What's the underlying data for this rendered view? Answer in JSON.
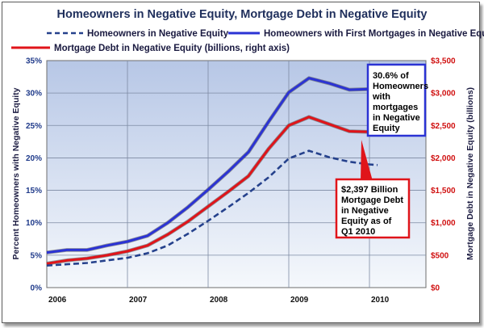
{
  "chart_data": {
    "type": "line",
    "title": "Homeowners in Negative Equity, Mortgage Debt in Negative Equity",
    "ylabel": "Percent Homeowners with Negative Equity",
    "y2label": "Mortgage Debt in Negative Equity (billions)",
    "ylim": [
      0,
      35
    ],
    "y2lim": [
      0,
      3500
    ],
    "xlim": [
      2006,
      2010.7
    ],
    "yticks": [
      "0%",
      "5%",
      "10%",
      "15%",
      "20%",
      "25%",
      "30%",
      "35%"
    ],
    "y2ticks": [
      "$0",
      "$500",
      "$1,000",
      "$1,500",
      "$2,000",
      "$2,500",
      "$3,000",
      "$3,500"
    ],
    "xticks": [
      "2006",
      "2007",
      "2008",
      "2009",
      "2010"
    ],
    "grid": true,
    "legend_position": "top",
    "x": [
      2006.0,
      2006.25,
      2006.5,
      2006.75,
      2007.0,
      2007.25,
      2007.5,
      2007.75,
      2008.0,
      2008.25,
      2008.5,
      2008.75,
      2009.0,
      2009.25,
      2009.5,
      2009.75,
      2010.0,
      2010.1
    ],
    "series": [
      {
        "name": "Homeowners in Negative Equity",
        "axis": "left",
        "color": "#25418c",
        "style": "dashed",
        "values": [
          3.4,
          3.6,
          3.8,
          4.2,
          4.6,
          5.3,
          6.5,
          8.3,
          10.3,
          12.4,
          14.6,
          17.0,
          19.9,
          21.1,
          20.1,
          19.4,
          19.0,
          18.9
        ]
      },
      {
        "name": "Homeowners with First Mortgages in Negative Equity",
        "axis": "left",
        "color": "#2b33d4",
        "style": "solid",
        "values": [
          5.4,
          5.8,
          5.8,
          6.5,
          7.1,
          8.0,
          10.0,
          12.4,
          15.1,
          17.9,
          20.9,
          25.6,
          30.1,
          32.3,
          31.5,
          30.5,
          30.6,
          30.6
        ]
      },
      {
        "name": "Mortgage Debt in Negative Equity (billions, right axis)",
        "axis": "right",
        "color": "#e0141a",
        "style": "solid",
        "values": [
          370,
          420,
          450,
          500,
          560,
          650,
          820,
          1020,
          1250,
          1480,
          1720,
          2140,
          2500,
          2630,
          2520,
          2410,
          2400,
          2397
        ]
      }
    ],
    "annotations": [
      {
        "text_lines": [
          "30.6% of",
          "Homeowners",
          "with",
          "mortgages",
          "in Negative",
          "Equity"
        ],
        "border_color": "#2b33d4"
      },
      {
        "text_lines": [
          "$2,397 Billion",
          "Mortgage Debt",
          "in  Negative",
          "Equity  as of",
          "Q1 2010"
        ],
        "border_color": "#e0141a"
      }
    ]
  }
}
